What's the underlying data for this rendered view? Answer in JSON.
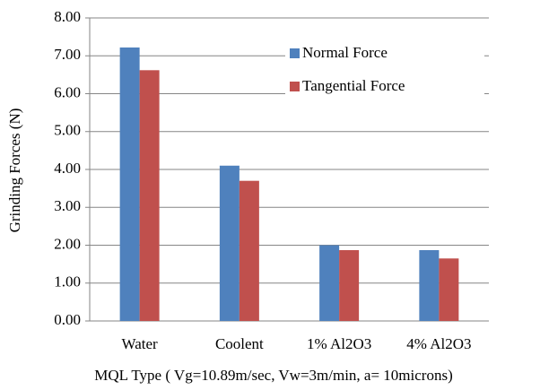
{
  "chart_data": {
    "type": "bar",
    "x_label": "MQL Type ( Vg=10.89m/sec, Vw=3m/min, a= 10microns)",
    "y_label": "Grinding Forces (N)",
    "categories": [
      "Water",
      "Coolent",
      "1%  Al2O3",
      "4% Al2O3"
    ],
    "series": [
      {
        "name": "Normal Force",
        "color": "#4f81bd",
        "values": [
          7.22,
          4.1,
          2.0,
          1.87
        ]
      },
      {
        "name": "Tangential Force",
        "color": "#c0504d",
        "values": [
          6.62,
          3.7,
          1.87,
          1.65
        ]
      }
    ],
    "ylim": [
      0,
      8
    ],
    "yticks": [
      {
        "value": 0,
        "label": "0.00"
      },
      {
        "value": 1,
        "label": "1.00"
      },
      {
        "value": 2,
        "label": "2.00"
      },
      {
        "value": 3,
        "label": "3.00"
      },
      {
        "value": 4,
        "label": "4.00"
      },
      {
        "value": 5,
        "label": "5.00"
      },
      {
        "value": 6,
        "label": "6.00"
      },
      {
        "value": 7,
        "label": "7.00"
      },
      {
        "value": 8,
        "label": "8.00"
      }
    ],
    "grid": true,
    "legend": "top-right"
  }
}
